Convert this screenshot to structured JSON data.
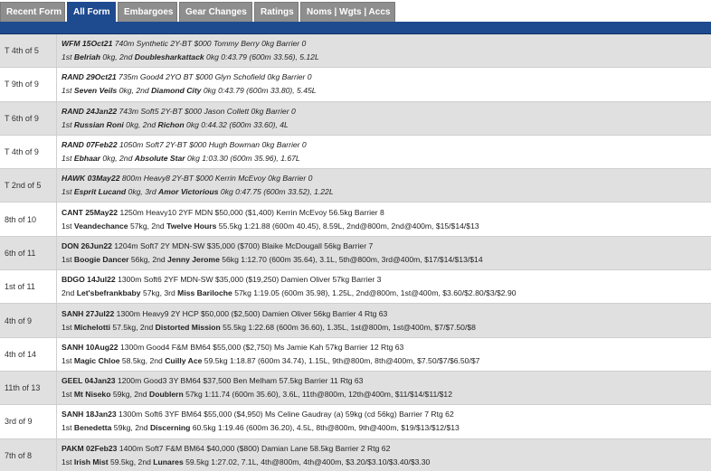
{
  "tabs": [
    {
      "label": "Recent Form"
    },
    {
      "label": "All Form"
    },
    {
      "label": "Embargoes"
    },
    {
      "label": "Gear Changes"
    },
    {
      "label": "Ratings"
    },
    {
      "label": "Noms | Wgts | Accs"
    }
  ],
  "colors": {
    "accent": "#1e4a8f",
    "tab_inactive": "#8e8e8e",
    "row_alt": "#e0e0e0"
  },
  "runs": [
    {
      "pos": "T 4th of 5",
      "title_b": "WFM 15Oct21",
      "title": " 740m Synthetic 2Y-BT $000 Tommy Berry 0kg Barrier 0",
      "l_pre": "1st ",
      "h1": "Belriah",
      "mid": " 0kg, 2nd ",
      "h2": "Doublesharkattack",
      "tail": " 0kg 0:43.79 (600m 33.56), 5.12L"
    },
    {
      "pos": "T 9th of 9",
      "title_b": "RAND 29Oct21",
      "title": " 735m Good4 2YO BT $000 Glyn Schofield 0kg Barrier 0",
      "l_pre": "1st ",
      "h1": "Seven Veils",
      "mid": " 0kg, 2nd ",
      "h2": "Diamond City",
      "tail": " 0kg 0:43.79 (600m 33.80), 5.45L"
    },
    {
      "pos": "T 6th of 9",
      "title_b": "RAND 24Jan22",
      "title": " 743m Soft5 2Y-BT $000 Jason Collett 0kg Barrier 0",
      "l_pre": "1st ",
      "h1": "Russian Roni",
      "mid": " 0kg, 2nd ",
      "h2": "Richon",
      "tail": " 0kg 0:44.32 (600m 33.60), 4L"
    },
    {
      "pos": "T 4th of 9",
      "title_b": "RAND 07Feb22",
      "title": " 1050m Soft7 2Y-BT $000 Hugh Bowman 0kg Barrier 0",
      "l_pre": "1st ",
      "h1": "Ebhaar",
      "mid": " 0kg, 2nd ",
      "h2": "Absolute Star",
      "tail": " 0kg 1:03.30 (600m 35.96), 1.67L"
    },
    {
      "pos": "T 2nd of 5",
      "title_b": "HAWK 03May22",
      "title": " 800m Heavy8 2Y-BT $000 Kerrin McEvoy 0kg Barrier 0",
      "l_pre": "1st ",
      "h1": "Esprit Lucand",
      "mid": " 0kg, 3rd ",
      "h2": "Amor Victorious",
      "tail": " 0kg 0:47.75 (600m 33.52), 1.22L"
    },
    {
      "pos": "8th of 10",
      "title_b": "CANT 25May22",
      "title": " 1250m Heavy10 2YF MDN $50,000 ($1,400) Kerrin McEvoy 56.5kg Barrier 8",
      "l_pre": "1st ",
      "h1": "Veandechance",
      "mid": " 57kg, 2nd ",
      "h2": "Twelve Hours",
      "tail": " 55.5kg 1:21.88 (600m 40.45), 8.59L, 2nd@800m, 2nd@400m, $15/$14/$13"
    },
    {
      "pos": "6th of 11",
      "title_b": "DON 26Jun22",
      "title": " 1204m Soft7 2Y MDN-SW $35,000 ($700) Blaike McDougall 56kg Barrier 7",
      "l_pre": "1st ",
      "h1": "Boogie Dancer",
      "mid": " 56kg, 2nd ",
      "h2": "Jenny Jerome",
      "tail": " 56kg 1:12.70 (600m 35.64), 3.1L, 5th@800m, 3rd@400m, $17/$14/$13/$14"
    },
    {
      "pos": "1st of 11",
      "title_b": "BDGO 14Jul22",
      "title": " 1300m Soft6 2YF MDN-SW $35,000 ($19,250) Damien Oliver 57kg Barrier 3",
      "l_pre": "2nd ",
      "h1": "Let'sbefrankbaby",
      "mid": " 57kg, 3rd ",
      "h2": "Miss Bariloche",
      "tail": " 57kg 1:19.05 (600m 35.98), 1.25L, 2nd@800m, 1st@400m, $3.60/$2.80/$3/$2.90"
    },
    {
      "pos": "4th of 9",
      "title_b": "SANH 27Jul22",
      "title": " 1300m Heavy9 2Y HCP $50,000 ($2,500) Damien Oliver 56kg Barrier 4 Rtg 63",
      "l_pre": "1st ",
      "h1": "Michelotti",
      "mid": " 57.5kg, 2nd ",
      "h2": "Distorted Mission",
      "tail": " 55.5kg 1:22.68 (600m 36.60), 1.35L, 1st@800m, 1st@400m, $7/$7.50/$8"
    },
    {
      "pos": "4th of 14",
      "title_b": "SANH 10Aug22",
      "title": " 1300m Good4 F&M BM64 $55,000 ($2,750) Ms Jamie Kah 57kg Barrier 12 Rtg 63",
      "l_pre": "1st ",
      "h1": "Magic Chloe",
      "mid": " 58.5kg, 2nd ",
      "h2": "Cuilly Ace",
      "tail": " 59.5kg 1:18.87 (600m 34.74), 1.15L, 9th@800m, 8th@400m, $7.50/$7/$6.50/$7"
    },
    {
      "pos": "11th of 13",
      "title_b": "GEEL 04Jan23",
      "title": " 1200m Good3 3Y BM64 $37,500 Ben Melham 57.5kg Barrier 11 Rtg 63",
      "l_pre": "1st ",
      "h1": "Mt Niseko",
      "mid": " 59kg, 2nd ",
      "h2": "Doublern",
      "tail": " 57kg 1:11.74 (600m 35.60), 3.6L, 11th@800m, 12th@400m, $11/$14/$11/$12"
    },
    {
      "pos": "3rd of 9",
      "title_b": "SANH 18Jan23",
      "title": " 1300m Soft6 3YF BM64 $55,000 ($4,950) Ms Celine Gaudray (a) 59kg (cd 56kg) Barrier 7 Rtg 62",
      "l_pre": "1st ",
      "h1": "Benedetta",
      "mid": " 59kg, 2nd ",
      "h2": "Discerning",
      "tail": " 60.5kg 1:19.46 (600m 36.20), 4.5L, 8th@800m, 9th@400m, $19/$13/$12/$13"
    },
    {
      "pos": "7th of 8",
      "title_b": "PAKM 02Feb23",
      "title": " 1400m Soft7 F&M BM64 $40,000 ($800) Damian Lane 58.5kg Barrier 2 Rtg 62",
      "l_pre": "1st ",
      "h1": "Irish Mist",
      "mid": " 59.5kg, 2nd ",
      "h2": "Lunares",
      "tail": " 59.5kg 1:27.02, 7.1L, 4th@800m, 4th@400m, $3.20/$3.10/$3.40/$3.30"
    }
  ]
}
